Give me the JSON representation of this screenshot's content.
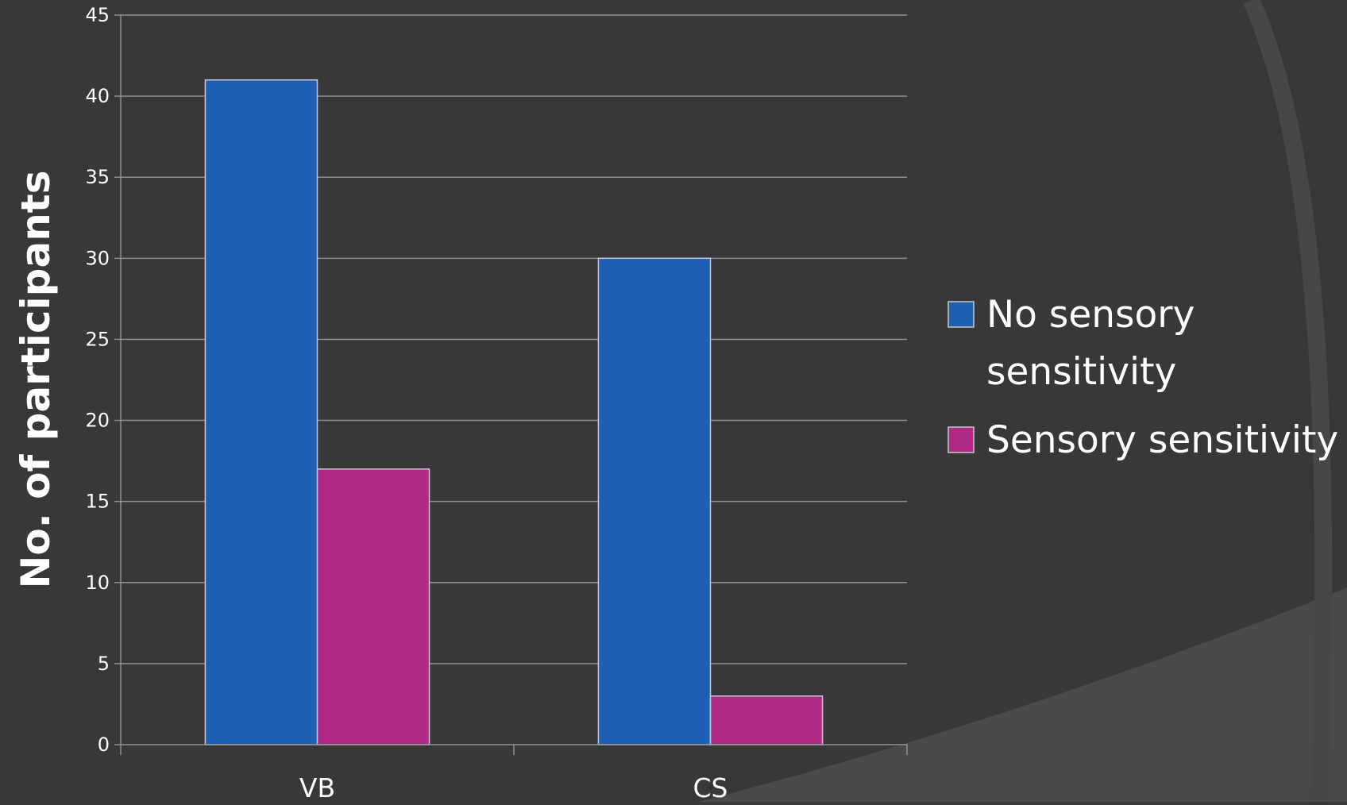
{
  "chart_data": {
    "type": "bar",
    "title": "",
    "xlabel": "",
    "ylabel": "No. of participants",
    "ylim": [
      0,
      45
    ],
    "yticks": [
      0,
      5,
      10,
      15,
      20,
      25,
      30,
      35,
      40,
      45
    ],
    "categories": [
      "VB",
      "CS"
    ],
    "series": [
      {
        "name": "No sensory sensitivity",
        "values": [
          41,
          30
        ],
        "color": "#1f5fb4"
      },
      {
        "name": "Sensory sensitivity",
        "values": [
          17,
          3
        ],
        "color": "#b02a84"
      }
    ],
    "grid": true,
    "legend_position": "right"
  },
  "legend": {
    "line1": "No sensory",
    "line2": "sensitivity",
    "item2": "Sensory sensitivity"
  },
  "colors": {
    "background": "#383838",
    "decor_arc": "#474747",
    "gridline": "#8f8f8f",
    "text": "#ffffff"
  }
}
